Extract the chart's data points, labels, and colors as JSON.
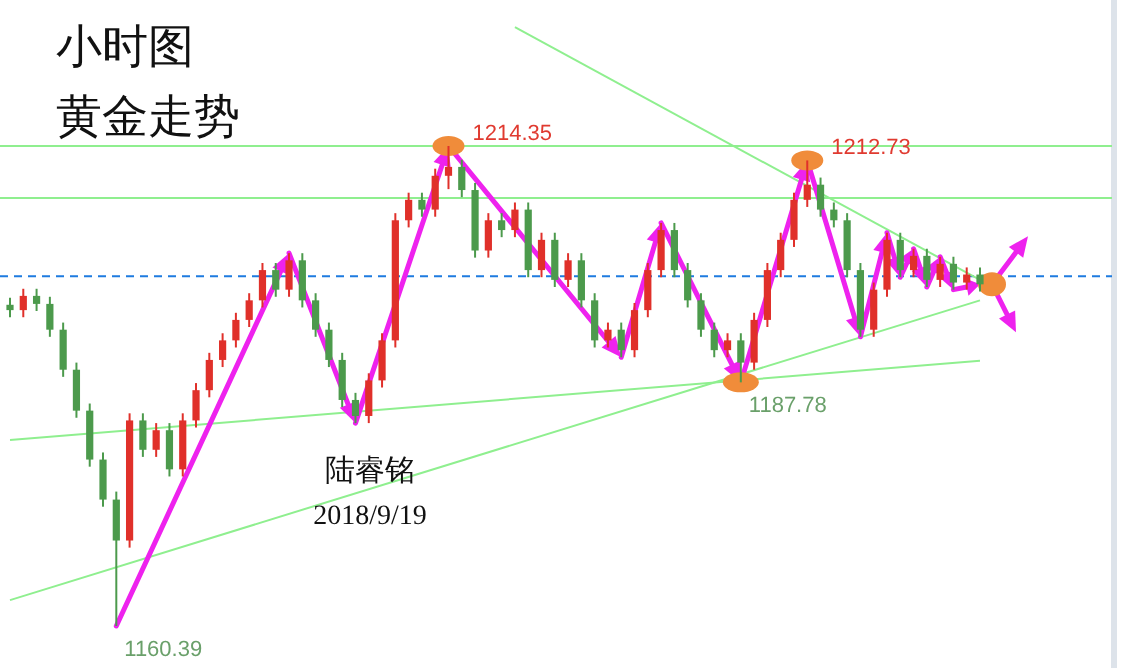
{
  "chart_data": {
    "type": "candlestick",
    "title": "小时图",
    "subtitle": "黄金走势",
    "categories": [
      null,
      null,
      null,
      null,
      null,
      null,
      null,
      null,
      null,
      null,
      null,
      null,
      null,
      null,
      null,
      null,
      null,
      null,
      null,
      null,
      null,
      null,
      null,
      null,
      null,
      null,
      null,
      null,
      null,
      null,
      null,
      null,
      null,
      null,
      null,
      null,
      null,
      null,
      null,
      null,
      null,
      null,
      null,
      null,
      null,
      null,
      null,
      null,
      null,
      null,
      null,
      null,
      null,
      null,
      null,
      null,
      null,
      null,
      null,
      null,
      null,
      null,
      null,
      null,
      null,
      null,
      null,
      null,
      null,
      null,
      null,
      null,
      null,
      null
    ],
    "ohlc": [
      [
        1196.5,
        1197.3,
        1195.1,
        1195.9
      ],
      [
        1195.9,
        1198.3,
        1195.1,
        1197.5
      ],
      [
        1197.5,
        1198.3,
        1195.8,
        1196.6
      ],
      [
        1196.6,
        1197.4,
        1192.9,
        1193.7
      ],
      [
        1193.7,
        1194.5,
        1188.4,
        1189.2
      ],
      [
        1189.2,
        1190.0,
        1183.8,
        1184.6
      ],
      [
        1184.6,
        1185.4,
        1178.3,
        1179.1
      ],
      [
        1179.1,
        1179.9,
        1173.8,
        1174.6
      ],
      [
        1174.6,
        1175.5,
        1160.39,
        1170.0
      ],
      [
        1170.0,
        1184.3,
        1169.2,
        1183.5
      ],
      [
        1183.5,
        1184.3,
        1179.4,
        1180.2
      ],
      [
        1180.2,
        1183.2,
        1179.4,
        1182.4
      ],
      [
        1182.4,
        1183.2,
        1177.2,
        1178.0
      ],
      [
        1178.0,
        1184.3,
        1177.2,
        1183.5
      ],
      [
        1183.5,
        1187.7,
        1182.7,
        1186.9
      ],
      [
        1186.9,
        1191.1,
        1186.1,
        1190.3
      ],
      [
        1190.3,
        1193.3,
        1189.5,
        1192.5
      ],
      [
        1192.5,
        1195.6,
        1191.7,
        1194.8
      ],
      [
        1194.8,
        1197.8,
        1194.0,
        1197.0
      ],
      [
        1197.0,
        1201.2,
        1196.2,
        1200.4
      ],
      [
        1200.4,
        1201.2,
        1197.4,
        1198.2
      ],
      [
        1198.2,
        1202.3,
        1197.4,
        1201.5
      ],
      [
        1201.5,
        1202.3,
        1196.2,
        1197.0
      ],
      [
        1197.0,
        1197.8,
        1192.9,
        1193.7
      ],
      [
        1193.7,
        1194.5,
        1189.5,
        1190.3
      ],
      [
        1190.3,
        1191.1,
        1185.0,
        1185.8
      ],
      [
        1185.8,
        1186.6,
        1183.2,
        1184.0
      ],
      [
        1184.0,
        1188.8,
        1183.2,
        1188.0
      ],
      [
        1188.0,
        1193.3,
        1187.2,
        1192.5
      ],
      [
        1192.5,
        1206.8,
        1191.7,
        1206.0
      ],
      [
        1206.0,
        1209.1,
        1205.2,
        1208.3
      ],
      [
        1208.3,
        1209.1,
        1206.4,
        1207.2
      ],
      [
        1207.2,
        1211.8,
        1206.4,
        1211.0
      ],
      [
        1211.0,
        1214.35,
        1209.5,
        1212.0
      ],
      [
        1212.0,
        1212.8,
        1208.6,
        1209.4
      ],
      [
        1209.4,
        1210.2,
        1201.8,
        1202.6
      ],
      [
        1202.6,
        1206.8,
        1201.8,
        1206.0
      ],
      [
        1206.0,
        1206.8,
        1204.1,
        1204.9
      ],
      [
        1204.9,
        1208.0,
        1204.1,
        1207.2
      ],
      [
        1207.2,
        1208.0,
        1199.6,
        1200.4
      ],
      [
        1200.4,
        1204.6,
        1199.6,
        1203.8
      ],
      [
        1203.8,
        1204.6,
        1198.5,
        1199.3
      ],
      [
        1199.3,
        1202.3,
        1198.5,
        1201.5
      ],
      [
        1201.5,
        1202.3,
        1196.2,
        1197.0
      ],
      [
        1197.0,
        1197.8,
        1191.7,
        1192.5
      ],
      [
        1192.5,
        1194.5,
        1191.7,
        1193.7
      ],
      [
        1193.7,
        1194.5,
        1190.6,
        1191.4
      ],
      [
        1191.4,
        1196.7,
        1190.6,
        1195.9
      ],
      [
        1195.9,
        1201.2,
        1195.1,
        1200.4
      ],
      [
        1200.4,
        1205.7,
        1199.6,
        1204.9
      ],
      [
        1204.9,
        1205.7,
        1199.6,
        1200.4
      ],
      [
        1200.4,
        1201.2,
        1196.2,
        1197.0
      ],
      [
        1197.0,
        1197.8,
        1192.9,
        1193.7
      ],
      [
        1193.7,
        1194.5,
        1190.6,
        1191.4
      ],
      [
        1191.4,
        1193.3,
        1190.6,
        1192.5
      ],
      [
        1192.5,
        1193.3,
        1187.78,
        1190.0
      ],
      [
        1190.0,
        1195.6,
        1189.2,
        1194.8
      ],
      [
        1194.8,
        1201.2,
        1194.0,
        1200.4
      ],
      [
        1200.4,
        1204.6,
        1199.6,
        1203.8
      ],
      [
        1203.8,
        1209.1,
        1203.0,
        1208.3
      ],
      [
        1208.3,
        1212.73,
        1207.5,
        1210.0
      ],
      [
        1210.0,
        1210.8,
        1206.4,
        1207.2
      ],
      [
        1207.2,
        1208.0,
        1205.2,
        1206.0
      ],
      [
        1206.0,
        1206.8,
        1199.6,
        1200.4
      ],
      [
        1200.4,
        1201.2,
        1192.9,
        1193.7
      ],
      [
        1193.7,
        1199.0,
        1192.9,
        1198.2
      ],
      [
        1198.2,
        1204.6,
        1197.4,
        1203.8
      ],
      [
        1203.8,
        1204.6,
        1199.6,
        1200.4
      ],
      [
        1200.4,
        1202.8,
        1199.6,
        1202.0
      ],
      [
        1202.0,
        1202.8,
        1198.5,
        1199.3
      ],
      [
        1199.3,
        1201.9,
        1198.5,
        1201.1
      ],
      [
        1201.1,
        1201.9,
        1198.2,
        1199.0
      ],
      [
        1199.0,
        1200.7,
        1198.2,
        1199.9
      ],
      [
        1199.9,
        1200.7,
        1198.0,
        1198.8
      ]
    ],
    "series": [
      {
        "type": "line",
        "color": "#8fef8f",
        "values": [
          1181.3,
          null,
          null,
          null,
          null,
          null,
          null,
          null,
          null,
          null,
          null,
          null,
          null,
          null,
          null,
          null,
          null,
          null,
          null,
          null,
          null,
          null,
          null,
          null,
          null,
          null,
          null,
          null,
          null,
          null,
          null,
          null,
          null,
          null,
          null,
          null,
          null,
          null,
          null,
          null,
          null,
          null,
          null,
          null,
          null,
          null,
          null,
          null,
          null,
          null,
          null,
          null,
          null,
          null,
          null,
          null,
          null,
          null,
          null,
          null,
          null,
          null,
          null,
          null,
          null,
          null,
          null,
          null,
          null,
          null,
          null,
          null,
          null,
          1190.2
        ]
      },
      {
        "type": "line",
        "color": "#8fef8f",
        "values": [
          1163.3,
          null,
          null,
          null,
          null,
          null,
          null,
          null,
          null,
          null,
          null,
          null,
          null,
          null,
          null,
          null,
          null,
          null,
          null,
          null,
          null,
          null,
          null,
          null,
          null,
          null,
          null,
          null,
          null,
          null,
          null,
          null,
          null,
          null,
          null,
          null,
          null,
          null,
          null,
          null,
          null,
          null,
          null,
          null,
          null,
          null,
          null,
          null,
          null,
          null,
          null,
          null,
          null,
          null,
          null,
          null,
          null,
          null,
          null,
          null,
          null,
          null,
          null,
          null,
          null,
          null,
          null,
          null,
          null,
          null,
          null,
          null,
          null,
          1197.0
        ]
      },
      {
        "type": "line",
        "color": "#8fef8f",
        "values": [
          null,
          null,
          null,
          null,
          null,
          null,
          null,
          null,
          null,
          null,
          null,
          null,
          null,
          null,
          null,
          null,
          null,
          null,
          null,
          null,
          null,
          null,
          null,
          null,
          null,
          null,
          null,
          null,
          null,
          null,
          null,
          null,
          null,
          null,
          null,
          null,
          null,
          null,
          1227.7,
          null,
          null,
          null,
          null,
          null,
          null,
          null,
          null,
          null,
          null,
          null,
          null,
          null,
          null,
          null,
          null,
          null,
          null,
          null,
          null,
          null,
          null,
          null,
          null,
          null,
          null,
          null,
          null,
          null,
          null,
          null,
          null,
          null,
          null,
          1199.3
        ]
      }
    ],
    "ref_lines": [
      {
        "axis": "y",
        "value": 1214.35,
        "color": "#8fef8f",
        "line_style": "solid"
      },
      {
        "axis": "y",
        "value": 1208.5,
        "color": "#8fef8f",
        "line_style": "solid"
      },
      {
        "axis": "y",
        "value": 1199.7,
        "color": "#1e7be0",
        "line_style": "dashed"
      }
    ],
    "annotations": [
      "1214.35",
      "1212.73",
      "1187.78",
      "1160.39",
      "陆睿铭",
      "2018/9/19"
    ]
  }
}
